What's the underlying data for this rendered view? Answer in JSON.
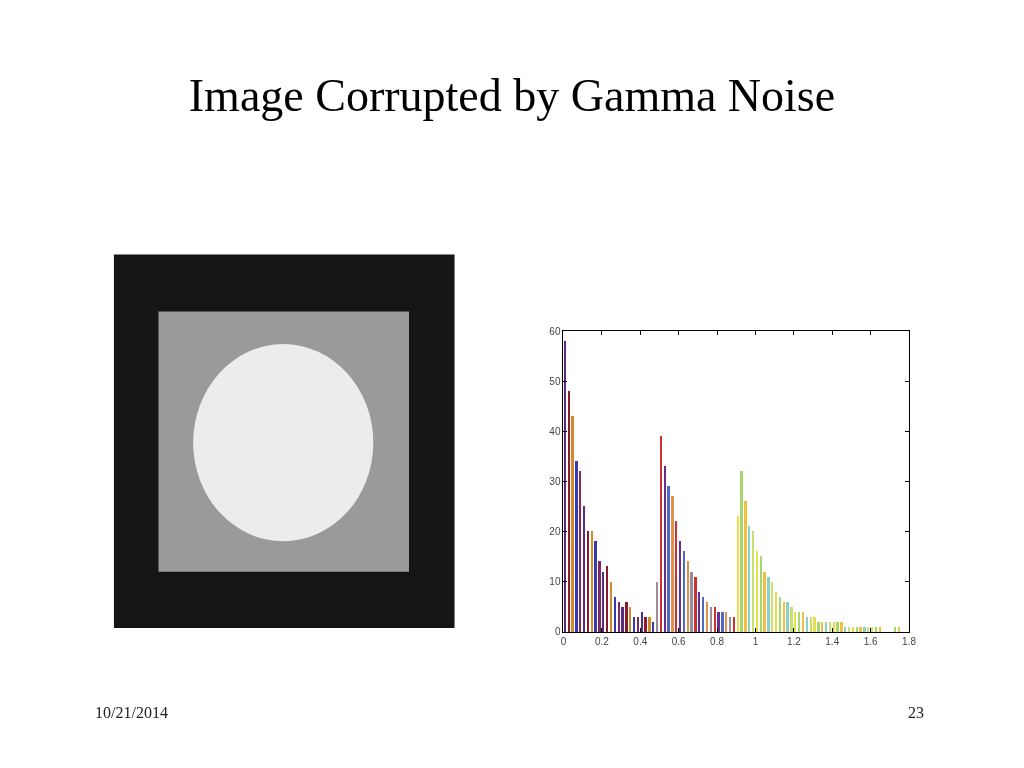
{
  "chart_data": {
    "type": "histogram",
    "title": "Image Corrupted by Gamma Noise",
    "bins": [
      0,
      0.02,
      0.04,
      0.06,
      0.08,
      0.1,
      0.12,
      0.14,
      0.16,
      0.18,
      0.2,
      0.22,
      0.24,
      0.26,
      0.28,
      0.3,
      0.32,
      0.34,
      0.36,
      0.38,
      0.4,
      0.42,
      0.44,
      0.46,
      0.48,
      0.5,
      0.52,
      0.54,
      0.56,
      0.58,
      0.6,
      0.62,
      0.64,
      0.66,
      0.68,
      0.7,
      0.72,
      0.74,
      0.76,
      0.78,
      0.8,
      0.82,
      0.84,
      0.86,
      0.88,
      0.9,
      0.92,
      0.94,
      0.96,
      0.98,
      1.0,
      1.02,
      1.04,
      1.06,
      1.08,
      1.1,
      1.12,
      1.14,
      1.16,
      1.18,
      1.2,
      1.22,
      1.24,
      1.26,
      1.28,
      1.3,
      1.32,
      1.34,
      1.36,
      1.38,
      1.4,
      1.42,
      1.44,
      1.46,
      1.48,
      1.5,
      1.52,
      1.54,
      1.56,
      1.58,
      1.6,
      1.62,
      1.64,
      1.66,
      1.68,
      1.7,
      1.72,
      1.74,
      1.76,
      1.78,
      1.8
    ],
    "values": [
      58,
      48,
      43,
      34,
      32,
      25,
      20,
      20,
      18,
      14,
      12,
      13,
      10,
      7,
      6,
      5,
      6,
      5,
      3,
      3,
      4,
      3,
      3,
      2,
      10,
      39,
      33,
      29,
      27,
      22,
      18,
      16,
      14,
      12,
      11,
      8,
      7,
      6,
      5,
      5,
      4,
      4,
      4,
      3,
      3,
      23,
      32,
      26,
      21,
      20,
      16,
      15,
      12,
      11,
      10,
      8,
      7,
      6,
      6,
      5,
      4,
      4,
      4,
      3,
      3,
      3,
      2,
      2,
      2,
      2,
      2,
      2,
      2,
      1,
      1,
      1,
      1,
      1,
      1,
      1,
      1,
      1,
      1,
      0,
      0,
      0,
      1,
      1,
      0,
      0
    ],
    "colors": [
      "#5a2a82",
      "#8b1a2a",
      "#d08a30",
      "#3a3ab0",
      "#7a2a6a",
      "#5a2a82",
      "#8b1a2a",
      "#d08a30",
      "#3a3ab0",
      "#7a2a6a",
      "#5a2a82",
      "#8b1a2a",
      "#d08a30",
      "#3a3ab0",
      "#7a2a6a",
      "#5a2a82",
      "#8b1a2a",
      "#d08a30",
      "#3a3ab0",
      "#7a2a6a",
      "#5a2a82",
      "#8b1a2a",
      "#d08a30",
      "#3a3ab0",
      "#9a8a9a",
      "#c83232",
      "#6a2c91",
      "#4a6ac8",
      "#e0904a",
      "#c83232",
      "#6a2c91",
      "#4a6ac8",
      "#e0904a",
      "#9a8a9a",
      "#c83232",
      "#6a2c91",
      "#4a6ac8",
      "#e0904a",
      "#9a8a9a",
      "#c83232",
      "#6a2c91",
      "#4a6ac8",
      "#e0904a",
      "#9a8a9a",
      "#c83232",
      "#e6e04a",
      "#a6d66e",
      "#f0c040",
      "#8ad0c8",
      "#c8e070",
      "#e6e04a",
      "#a6d66e",
      "#f0c040",
      "#8ad0c8",
      "#c8e070",
      "#e6e04a",
      "#a6d66e",
      "#f0c040",
      "#8ad0c8",
      "#c8e070",
      "#e6e04a",
      "#a6d66e",
      "#f0c040",
      "#8ad0c8",
      "#c8e070",
      "#e6e04a",
      "#a6d66e",
      "#f0c040",
      "#8ad0c8",
      "#c8e070",
      "#e6e04a",
      "#a6d66e",
      "#f0c040",
      "#8ad0c8",
      "#c8e070",
      "#e6e04a",
      "#a6d66e",
      "#f0c040",
      "#8ad0c8",
      "#c8e070",
      "#e6e04a",
      "#a6d66e",
      "#f0c040",
      "#8ad0c8",
      "#c8e070",
      "#e6e04a",
      "#a6d66e",
      "#f0c040",
      "#8ad0c8",
      "#c8e070"
    ],
    "xlim": [
      0,
      1.8
    ],
    "ylim": [
      0,
      60
    ],
    "xticks": [
      0,
      0.2,
      0.4,
      0.6,
      0.8,
      1,
      1.2,
      1.4,
      1.6,
      1.8
    ],
    "yticks": [
      0,
      10,
      20,
      30,
      40,
      50,
      60
    ],
    "annotations": [
      "10/21/2014",
      "23"
    ]
  }
}
